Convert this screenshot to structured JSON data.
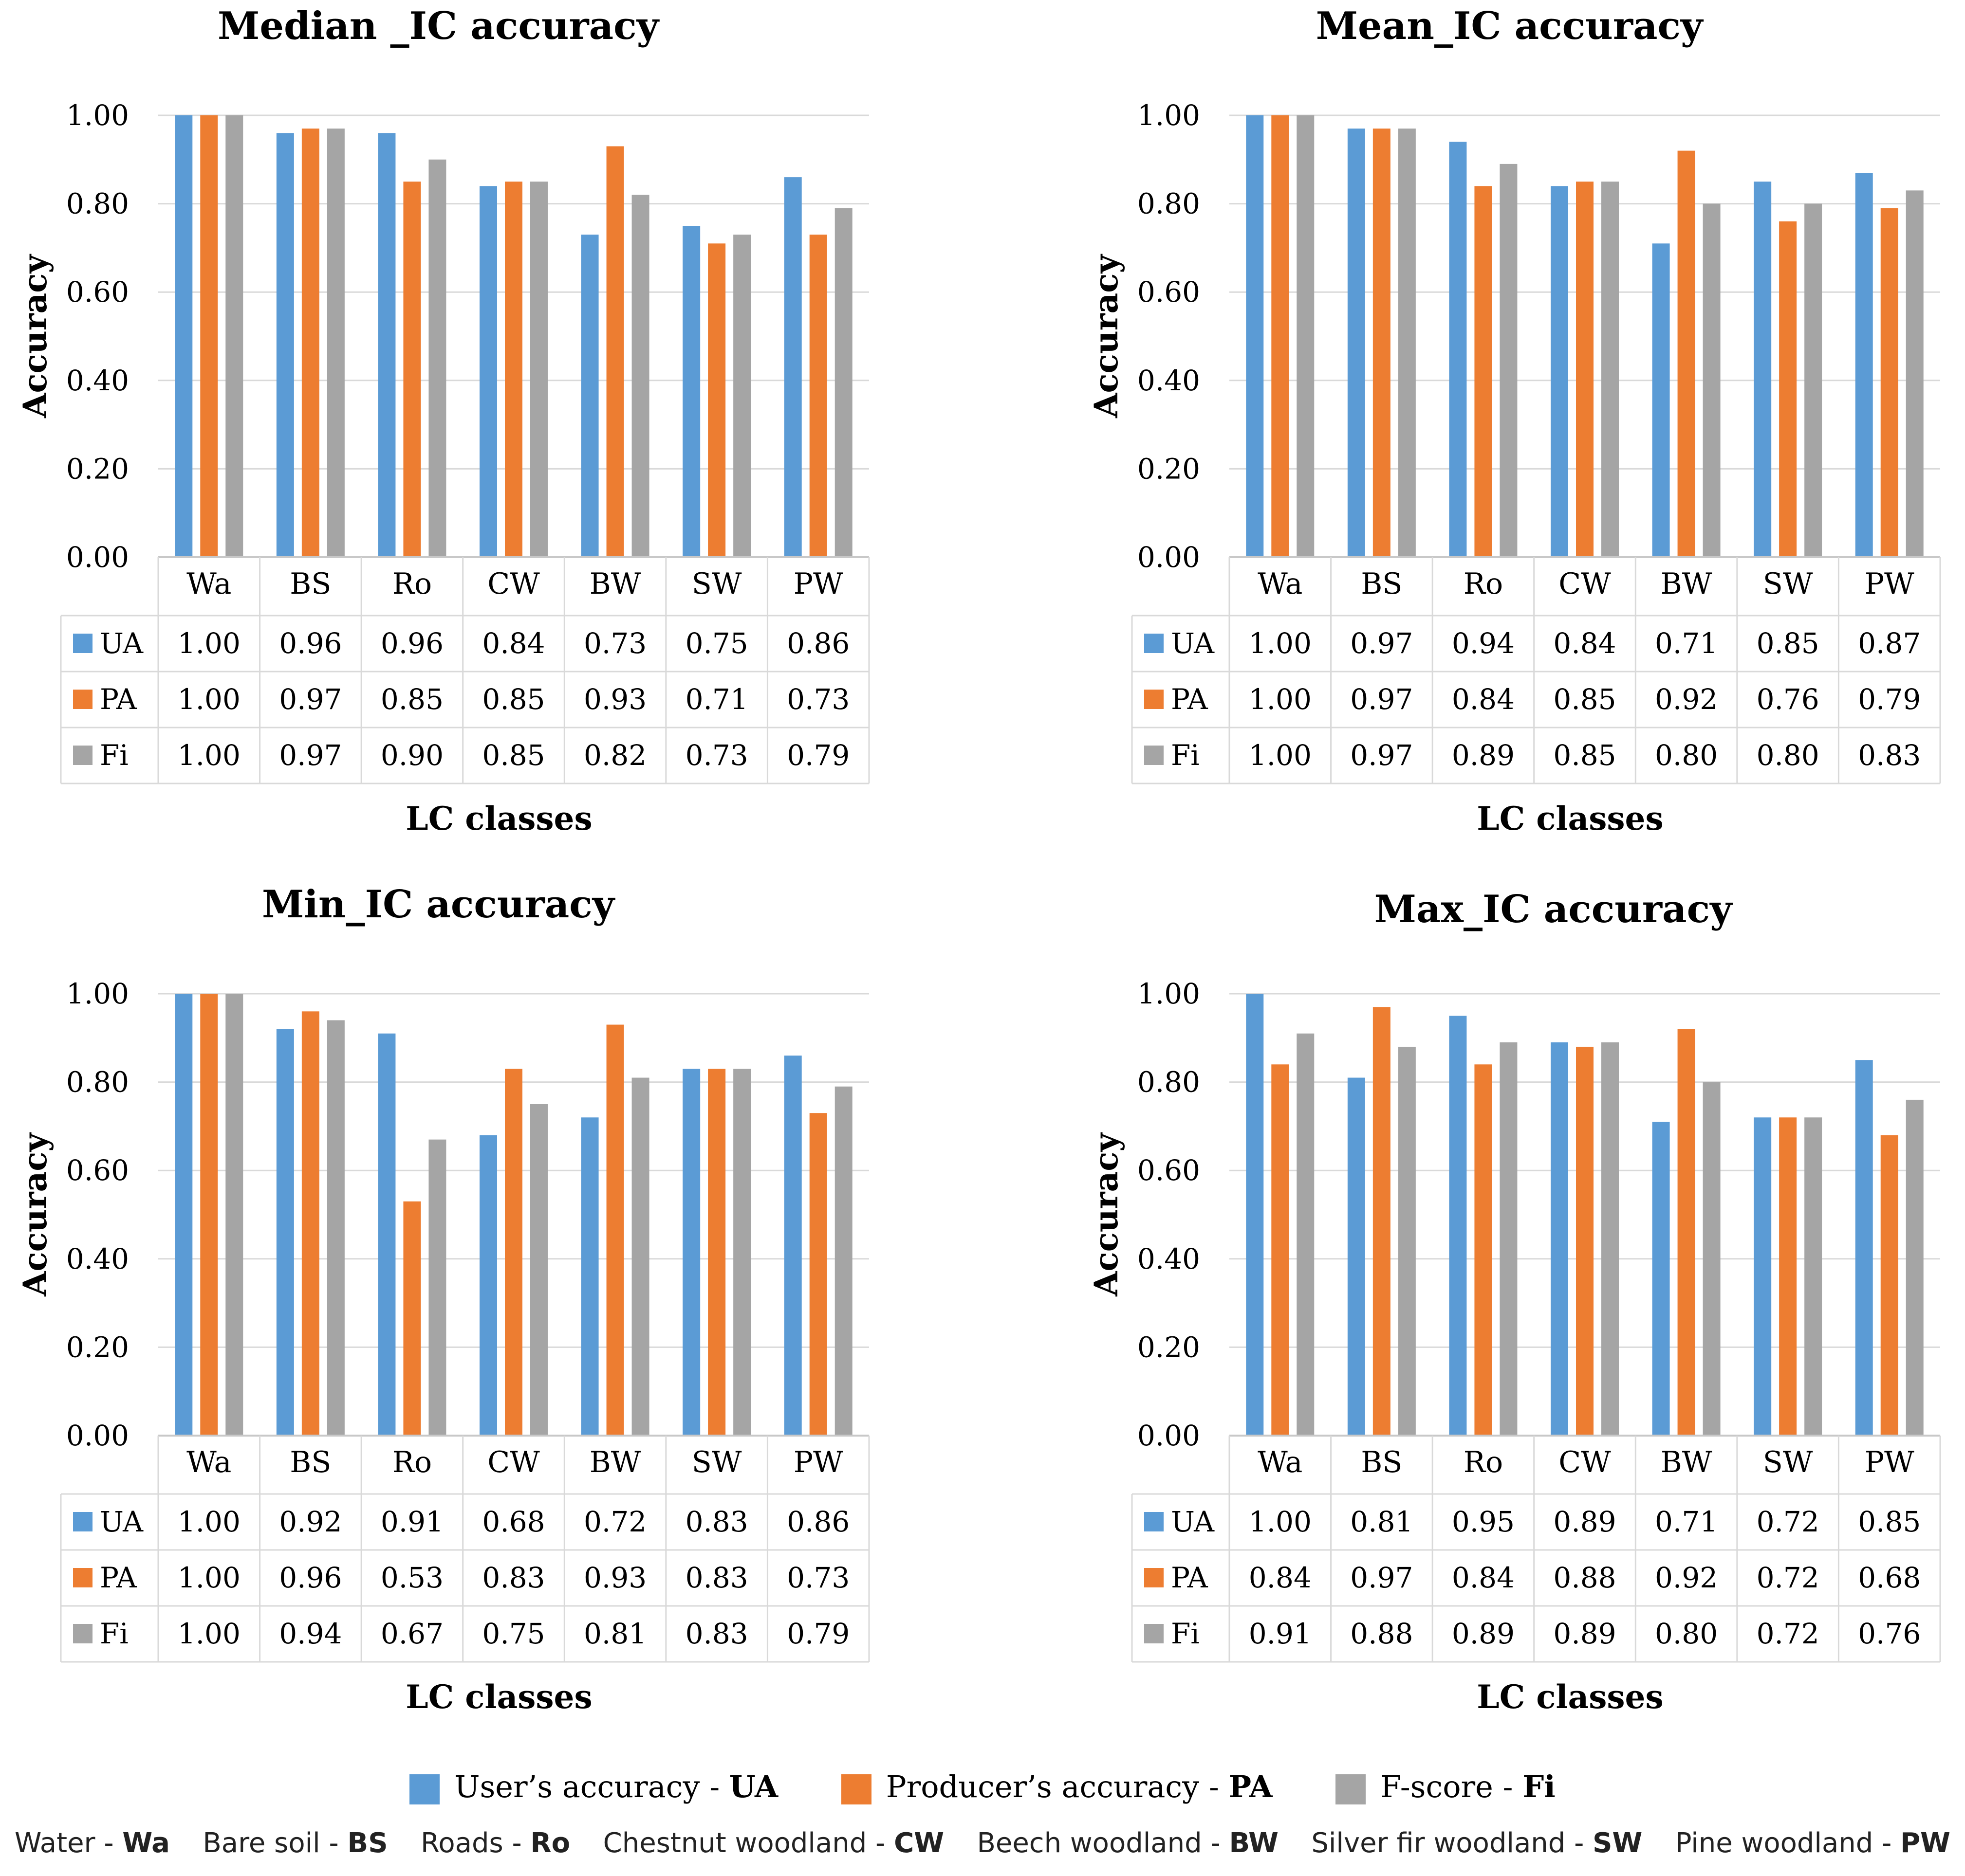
{
  "chart_data": [
    {
      "type": "bar",
      "title": "Median _IC accuracy",
      "xlabel": "LC classes",
      "ylabel": "Accuracy",
      "ylim": [
        0,
        1
      ],
      "yticks": [
        "0.00",
        "0.20",
        "0.40",
        "0.60",
        "0.80",
        "1.00"
      ],
      "categories": [
        "Wa",
        "BS",
        "Ro",
        "CW",
        "BW",
        "SW",
        "PW"
      ],
      "series": [
        {
          "name": "UA",
          "values": [
            1.0,
            0.96,
            0.96,
            0.84,
            0.73,
            0.75,
            0.86
          ],
          "labels": [
            "1.00",
            "0.96",
            "0.96",
            "0.84",
            "0.73",
            "0.75",
            "0.86"
          ]
        },
        {
          "name": "PA",
          "values": [
            1.0,
            0.97,
            0.85,
            0.85,
            0.93,
            0.71,
            0.73
          ],
          "labels": [
            "1.00",
            "0.97",
            "0.85",
            "0.85",
            "0.93",
            "0.71",
            "0.73"
          ]
        },
        {
          "name": "Fi",
          "values": [
            1.0,
            0.97,
            0.9,
            0.85,
            0.82,
            0.73,
            0.79
          ],
          "labels": [
            "1.00",
            "0.97",
            "0.90",
            "0.85",
            "0.82",
            "0.73",
            "0.79"
          ]
        }
      ]
    },
    {
      "type": "bar",
      "title": "Mean_IC accuracy",
      "xlabel": "LC classes",
      "ylabel": "Accuracy",
      "ylim": [
        0,
        1
      ],
      "yticks": [
        "0.00",
        "0.20",
        "0.40",
        "0.60",
        "0.80",
        "1.00"
      ],
      "categories": [
        "Wa",
        "BS",
        "Ro",
        "CW",
        "BW",
        "SW",
        "PW"
      ],
      "series": [
        {
          "name": "UA",
          "values": [
            1.0,
            0.97,
            0.94,
            0.84,
            0.71,
            0.85,
            0.87
          ],
          "labels": [
            "1.00",
            "0.97",
            "0.94",
            "0.84",
            "0.71",
            "0.85",
            "0.87"
          ]
        },
        {
          "name": "PA",
          "values": [
            1.0,
            0.97,
            0.84,
            0.85,
            0.92,
            0.76,
            0.79
          ],
          "labels": [
            "1.00",
            "0.97",
            "0.84",
            "0.85",
            "0.92",
            "0.76",
            "0.79"
          ]
        },
        {
          "name": "Fi",
          "values": [
            1.0,
            0.97,
            0.89,
            0.85,
            0.8,
            0.8,
            0.83
          ],
          "labels": [
            "1.00",
            "0.97",
            "0.89",
            "0.85",
            "0.80",
            "0.80",
            "0.83"
          ]
        }
      ]
    },
    {
      "type": "bar",
      "title": "Min_IC accuracy",
      "xlabel": "LC classes",
      "ylabel": "Accuracy",
      "ylim": [
        0,
        1
      ],
      "yticks": [
        "0.00",
        "0.20",
        "0.40",
        "0.60",
        "0.80",
        "1.00"
      ],
      "categories": [
        "Wa",
        "BS",
        "Ro",
        "CW",
        "BW",
        "SW",
        "PW"
      ],
      "series": [
        {
          "name": "UA",
          "values": [
            1.0,
            0.92,
            0.91,
            0.68,
            0.72,
            0.83,
            0.86
          ],
          "labels": [
            "1.00",
            "0.92",
            "0.91",
            "0.68",
            "0.72",
            "0.83",
            "0.86"
          ]
        },
        {
          "name": "PA",
          "values": [
            1.0,
            0.96,
            0.53,
            0.83,
            0.93,
            0.83,
            0.73
          ],
          "labels": [
            "1.00",
            "0.96",
            "0.53",
            "0.83",
            "0.93",
            "0.83",
            "0.73"
          ]
        },
        {
          "name": "Fi",
          "values": [
            1.0,
            0.94,
            0.67,
            0.75,
            0.81,
            0.83,
            0.79
          ],
          "labels": [
            "1.00",
            "0.94",
            "0.67",
            "0.75",
            "0.81",
            "0.83",
            "0.79"
          ]
        }
      ]
    },
    {
      "type": "bar",
      "title": "Max_IC accuracy",
      "xlabel": "LC classes",
      "ylabel": "Accuracy",
      "ylim": [
        0,
        1
      ],
      "yticks": [
        "0.00",
        "0.20",
        "0.40",
        "0.60",
        "0.80",
        "1.00"
      ],
      "categories": [
        "Wa",
        "BS",
        "Ro",
        "CW",
        "BW",
        "SW",
        "PW"
      ],
      "series": [
        {
          "name": "UA",
          "values": [
            1.0,
            0.81,
            0.95,
            0.89,
            0.71,
            0.72,
            0.85
          ],
          "labels": [
            "1.00",
            "0.81",
            "0.95",
            "0.89",
            "0.71",
            "0.72",
            "0.85"
          ]
        },
        {
          "name": "PA",
          "values": [
            0.84,
            0.97,
            0.84,
            0.88,
            0.92,
            0.72,
            0.68
          ],
          "labels": [
            "0.84",
            "0.97",
            "0.84",
            "0.88",
            "0.92",
            "0.72",
            "0.68"
          ]
        },
        {
          "name": "Fi",
          "values": [
            0.91,
            0.88,
            0.89,
            0.89,
            0.8,
            0.72,
            0.76
          ],
          "labels": [
            "0.91",
            "0.88",
            "0.89",
            "0.89",
            "0.80",
            "0.72",
            "0.76"
          ]
        }
      ]
    }
  ],
  "colors": {
    "UA": "#5b9bd5",
    "PA": "#ed7d31",
    "Fi": "#a5a5a5"
  },
  "legend": {
    "ua_text": "User’s accuracy - ",
    "ua_abbr": "UA",
    "pa_text": "Producer’s accuracy - ",
    "pa_abbr": "PA",
    "fi_text": "F-score - ",
    "fi_abbr": "Fi"
  },
  "abbreviations": [
    {
      "name": "Water - ",
      "abbr": "Wa"
    },
    {
      "name": "Bare soil - ",
      "abbr": "BS"
    },
    {
      "name": "Roads - ",
      "abbr": "Ro"
    },
    {
      "name": "Chestnut woodland - ",
      "abbr": "CW"
    },
    {
      "name": "Beech woodland - ",
      "abbr": "BW"
    },
    {
      "name": "Silver fir woodland - ",
      "abbr": "SW"
    },
    {
      "name": "Pine woodland - ",
      "abbr": "PW"
    }
  ]
}
